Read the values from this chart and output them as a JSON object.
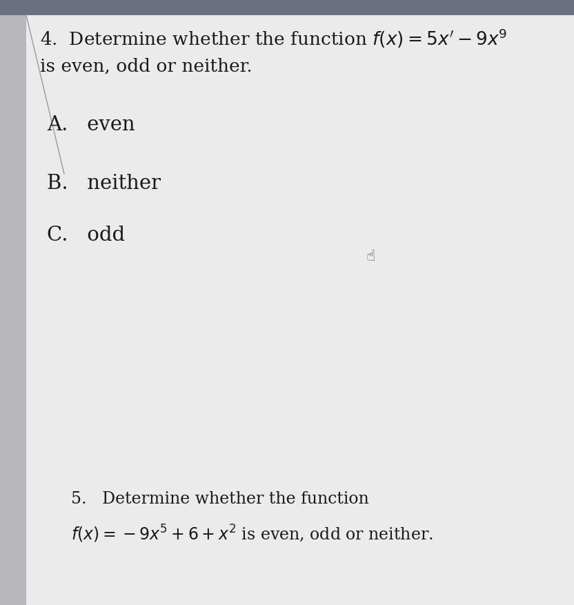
{
  "bg_color": "#c8c8cc",
  "main_bg": "#ebebeb",
  "top_bar_color": "#6a7080",
  "left_bar_color": "#b8b8bc",
  "text_color": "#1a1a1a",
  "line1": "4.  Determine whether the function $f(x) = 5x^{\\prime} - 9x^{9}$",
  "line2": "is even, odd or neither.",
  "options": [
    "A.   even",
    "B.   neither",
    "C.   odd"
  ],
  "q5_line1": "5.   Determine whether the function",
  "q5_line2": "$f(x) = -9x^5 + 6 + x^2$ is even, odd or neither.",
  "font_size_title": 19,
  "font_size_options": 21,
  "font_size_q5": 17,
  "fig_width": 8.32,
  "fig_height": 8.77,
  "dpi": 100
}
